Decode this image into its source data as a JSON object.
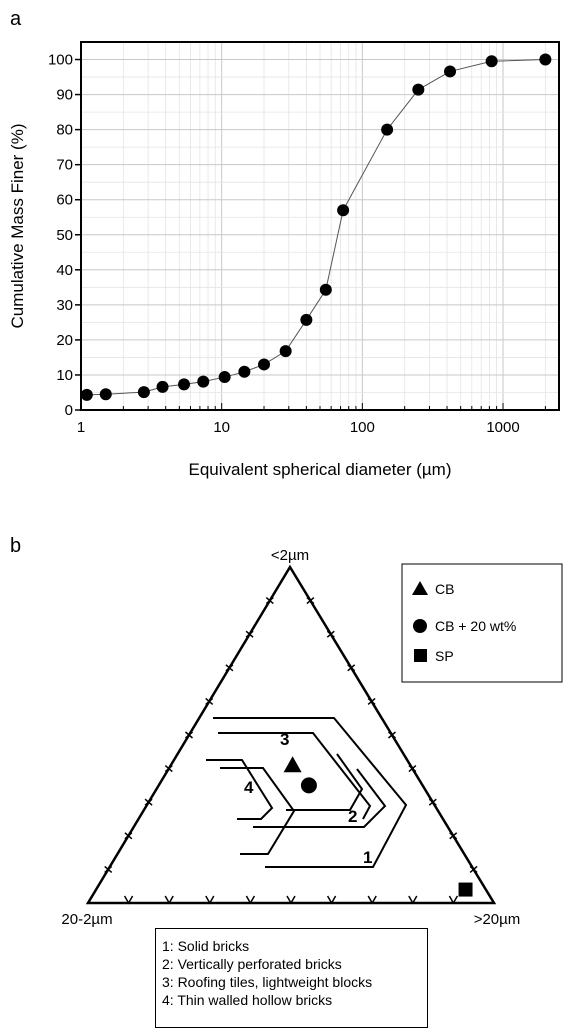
{
  "panel_a_label": "a",
  "panel_b_label": "b",
  "chart_data": [
    {
      "type": "scatter",
      "title": "",
      "xlabel": "Equivalent spherical diameter (µm)",
      "ylabel": "Cumulative Mass Finer (%)",
      "xscale": "log",
      "xlim": [
        1,
        2500
      ],
      "ylim": [
        0,
        105
      ],
      "xticks": [
        1,
        10,
        100,
        1000
      ],
      "xtick_labels": [
        "1",
        "10",
        "100",
        "1000"
      ],
      "yticks": [
        0,
        10,
        20,
        30,
        40,
        50,
        60,
        70,
        80,
        90,
        100
      ],
      "ytick_labels": [
        "0",
        "10",
        "20",
        "30",
        "40",
        "50",
        "60",
        "70",
        "80",
        "90",
        "100"
      ],
      "grid": true,
      "marker": "circle",
      "line": "connected",
      "x": [
        1.1,
        1.5,
        2.8,
        3.8,
        5.4,
        7.4,
        10.5,
        14.5,
        20,
        28.5,
        40,
        55,
        73,
        150,
        250,
        420,
        830,
        2000
      ],
      "y": [
        4.3,
        4.5,
        5.1,
        6.6,
        7.3,
        8.1,
        9.4,
        10.9,
        13.0,
        16.8,
        25.7,
        34.3,
        57.0,
        80.0,
        91.4,
        96.6,
        99.5,
        100.0
      ]
    },
    {
      "type": "ternary",
      "vertex_labels": {
        "top": "<2µm",
        "left": "20-2µm",
        "right": ">20µm"
      },
      "legend": [
        {
          "marker": "triangle",
          "label": "CB"
        },
        {
          "marker": "circle",
          "label": "CB + 20 wt%"
        },
        {
          "marker": "square",
          "label": "SP"
        }
      ],
      "legend_position": "top-right",
      "points": [
        {
          "label": "CB",
          "marker": "triangle",
          "clay": 41,
          "silt": 29,
          "sand": 30
        },
        {
          "label": "CB + 20 wt%",
          "marker": "circle",
          "clay": 35,
          "silt": 28,
          "sand": 37
        },
        {
          "label": "SP",
          "marker": "square",
          "clay": 4,
          "silt": 5,
          "sand": 91
        }
      ],
      "zones": [
        {
          "id": "1",
          "label": "Solid bricks"
        },
        {
          "id": "2",
          "label": "Vertically perforated bricks"
        },
        {
          "id": "3",
          "label": "Roofing tiles, lightweight blocks"
        },
        {
          "id": "4",
          "label": "Thin walled hollow bricks"
        }
      ],
      "zone_labels": [
        "1",
        "2",
        "3",
        "4"
      ]
    }
  ],
  "zone_key": [
    "1: Solid bricks",
    "2: Vertically perforated bricks",
    "3: Roofing tiles, lightweight blocks",
    "4: Thin walled hollow bricks"
  ]
}
